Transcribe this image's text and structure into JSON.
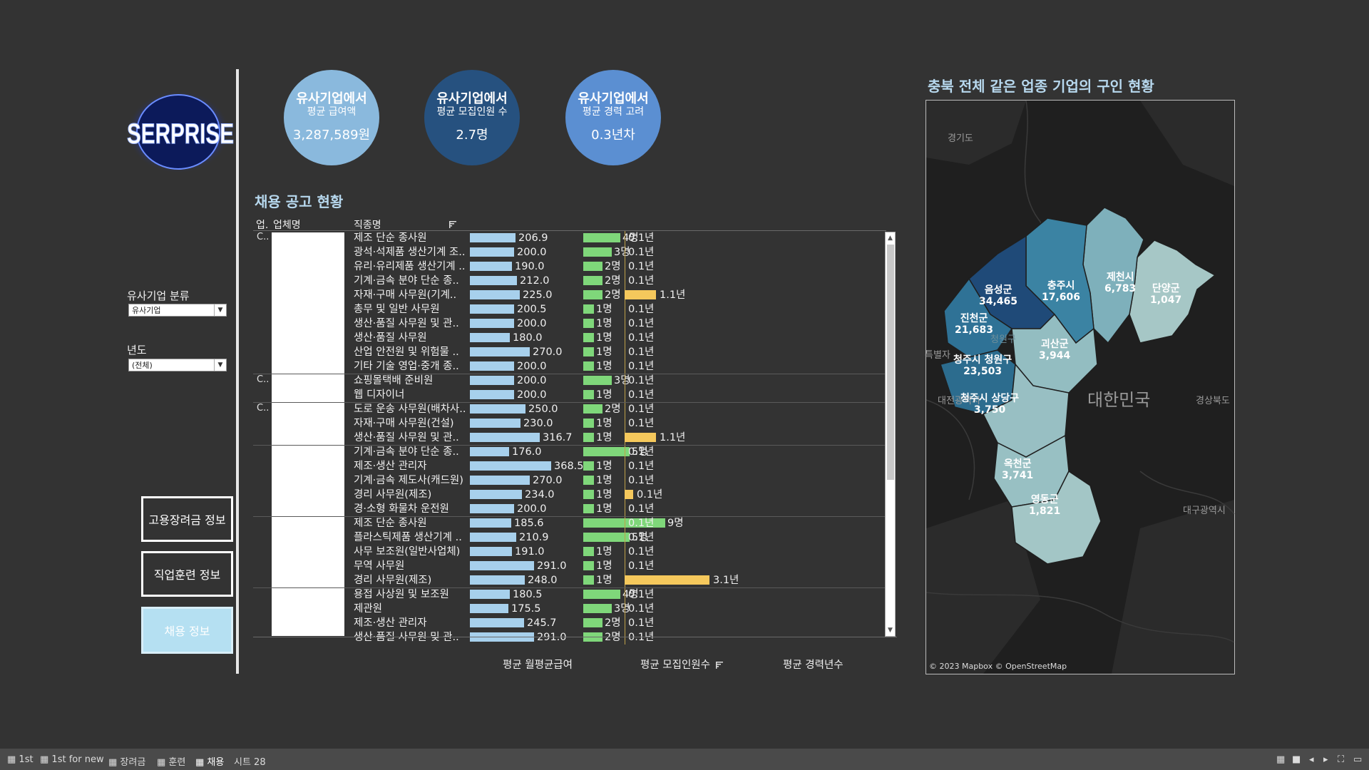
{
  "logo": {
    "text": "SERPRISE"
  },
  "filters": {
    "category_label": "유사기업 분류",
    "category_value": "유사기업",
    "year_label": "년도",
    "year_value": "(전체)"
  },
  "nav": {
    "subsidy": "고용장려금 정보",
    "training": "직업훈련 정보",
    "hiring": "채용 정보"
  },
  "kpis": [
    {
      "line1": "유사기업에서",
      "line2": "평균 급여액",
      "value": "3,287,589원",
      "color": "#8ab9dd"
    },
    {
      "line1": "유사기업에서",
      "line2": "평균 모집인원 수",
      "value": "2.7명",
      "color": "#26517f"
    },
    {
      "line1": "유사기업에서",
      "line2": "평균 경력 고려",
      "value": "0.3년차",
      "color": "#5b8fd2"
    }
  ],
  "table": {
    "title": "채용 공고 현황",
    "col_industry": "업.",
    "col_company": "업체명",
    "col_job": "직종명",
    "company_abbr": [
      "C..",
      "C..",
      "C.."
    ],
    "axis_salary": "평균 월평균급여",
    "axis_recruit": "평균 모집인원수",
    "axis_career": "평균 경력년수",
    "rows": [
      {
        "job": "제조 단순 종사원",
        "salary": 206.9,
        "salary_label": "206.9",
        "recruit": 4,
        "recruit_label": "4명",
        "career": 0.1,
        "career_label": "0.1년"
      },
      {
        "job": "광석·석제품 생산기계 조..",
        "salary": 200.0,
        "salary_label": "200.0",
        "recruit": 3,
        "recruit_label": "3명",
        "career": 0.1,
        "career_label": "0.1년"
      },
      {
        "job": "유리·유리제품 생산기계 ..",
        "salary": 190.0,
        "salary_label": "190.0",
        "recruit": 2,
        "recruit_label": "2명",
        "career": 0.1,
        "career_label": "0.1년"
      },
      {
        "job": "기계·금속 분야 단순 종..",
        "salary": 212.0,
        "salary_label": "212.0",
        "recruit": 2,
        "recruit_label": "2명",
        "career": 0.1,
        "career_label": "0.1년"
      },
      {
        "job": "자재·구매 사무원(기계..",
        "salary": 225.0,
        "salary_label": "225.0",
        "recruit": 2,
        "recruit_label": "2명",
        "career": 1.1,
        "career_label": "1.1년"
      },
      {
        "job": "총무 및 일반 사무원",
        "salary": 200.5,
        "salary_label": "200.5",
        "recruit": 1,
        "recruit_label": "1명",
        "career": 0.1,
        "career_label": "0.1년"
      },
      {
        "job": "생산·품질 사무원 및 관..",
        "salary": 200.0,
        "salary_label": "200.0",
        "recruit": 1,
        "recruit_label": "1명",
        "career": 0.1,
        "career_label": "0.1년"
      },
      {
        "job": "생산·품질 사무원",
        "salary": 180.0,
        "salary_label": "180.0",
        "recruit": 1,
        "recruit_label": "1명",
        "career": 0.1,
        "career_label": "0.1년"
      },
      {
        "job": "산업 안전원 및 위험물 ..",
        "salary": 270.0,
        "salary_label": "270.0",
        "recruit": 1,
        "recruit_label": "1명",
        "career": 0.1,
        "career_label": "0.1년"
      },
      {
        "job": "기타 기술 영업·중개 종..",
        "salary": 200.0,
        "salary_label": "200.0",
        "recruit": 1,
        "recruit_label": "1명",
        "career": 0.1,
        "career_label": "0.1년"
      },
      {
        "job": "쇼핑몰택배 준비원",
        "salary": 200.0,
        "salary_label": "200.0",
        "recruit": 3,
        "recruit_label": "3명",
        "career": 0.1,
        "career_label": "0.1년"
      },
      {
        "job": "웹 디자이너",
        "salary": 200.0,
        "salary_label": "200.0",
        "recruit": 1,
        "recruit_label": "1명",
        "career": 0.1,
        "career_label": "0.1년"
      },
      {
        "job": "도로 운송 사무원(배차사..",
        "salary": 250.0,
        "salary_label": "250.0",
        "recruit": 2,
        "recruit_label": "2명",
        "career": 0.1,
        "career_label": "0.1년"
      },
      {
        "job": "자재·구매 사무원(건설)",
        "salary": 230.0,
        "salary_label": "230.0",
        "recruit": 1,
        "recruit_label": "1명",
        "career": 0.1,
        "career_label": "0.1년"
      },
      {
        "job": "생산·품질 사무원 및 관..",
        "salary": 316.7,
        "salary_label": "316.7",
        "recruit": 1,
        "recruit_label": "1명",
        "career": 1.1,
        "career_label": "1.1년"
      },
      {
        "job": "기계·금속 분야 단순 종..",
        "salary": 176.0,
        "salary_label": "176.0",
        "recruit": 5,
        "recruit_label": "5명",
        "career": 0.1,
        "career_label": "0.1년"
      },
      {
        "job": "제조·생산 관리자",
        "salary": 368.5,
        "salary_label": "368.5",
        "recruit": 1,
        "recruit_label": "1명",
        "career": 0.1,
        "career_label": "0.1년"
      },
      {
        "job": "기계·금속 제도사(캐드원)",
        "salary": 270.0,
        "salary_label": "270.0",
        "recruit": 1,
        "recruit_label": "1명",
        "career": 0.1,
        "career_label": "0.1년"
      },
      {
        "job": "경리 사무원(제조)",
        "salary": 234.0,
        "salary_label": "234.0",
        "recruit": 1,
        "recruit_label": "1명",
        "career": 0.1,
        "career_label": "0.1년",
        "career_highlight": true
      },
      {
        "job": "경·소형 화물차 운전원",
        "salary": 200.0,
        "salary_label": "200.0",
        "recruit": 1,
        "recruit_label": "1명",
        "career": 0.1,
        "career_label": "0.1년"
      },
      {
        "job": "제조 단순 종사원",
        "salary": 185.6,
        "salary_label": "185.6",
        "recruit": 9,
        "recruit_label": "9명",
        "career": 0.1,
        "career_label": "0.1년"
      },
      {
        "job": "플라스틱제품 생산기계 ..",
        "salary": 210.9,
        "salary_label": "210.9",
        "recruit": 5,
        "recruit_label": "5명",
        "career": 0.1,
        "career_label": "0.1년"
      },
      {
        "job": "사무 보조원(일반사업체)",
        "salary": 191.0,
        "salary_label": "191.0",
        "recruit": 1,
        "recruit_label": "1명",
        "career": 0.1,
        "career_label": "0.1년"
      },
      {
        "job": "무역 사무원",
        "salary": 291.0,
        "salary_label": "291.0",
        "recruit": 1,
        "recruit_label": "1명",
        "career": 0.1,
        "career_label": "0.1년"
      },
      {
        "job": "경리 사무원(제조)",
        "salary": 248.0,
        "salary_label": "248.0",
        "recruit": 1,
        "recruit_label": "1명",
        "career": 3.1,
        "career_label": "3.1년"
      },
      {
        "job": "용접 사상원 및 보조원",
        "salary": 180.5,
        "salary_label": "180.5",
        "recruit": 4,
        "recruit_label": "4명",
        "career": 0.1,
        "career_label": "0.1년"
      },
      {
        "job": "제관원",
        "salary": 175.5,
        "salary_label": "175.5",
        "recruit": 3,
        "recruit_label": "3명",
        "career": 0.1,
        "career_label": "0.1년"
      },
      {
        "job": "제조·생산 관리자",
        "salary": 245.7,
        "salary_label": "245.7",
        "recruit": 2,
        "recruit_label": "2명",
        "career": 0.1,
        "career_label": "0.1년"
      },
      {
        "job": "생산·품질 사무원 및 관..",
        "salary": 291.0,
        "salary_label": "291.0",
        "recruit": 2,
        "recruit_label": "2명",
        "career": 0.1,
        "career_label": "0.1년"
      }
    ],
    "group_breaks_after": [
      9,
      11,
      14,
      19,
      24
    ]
  },
  "map": {
    "title": "충북 전체 같은 업종 기업의 구인 현황",
    "attribution": "© 2023 Mapbox © OpenStreetMap",
    "country_label": "대한민국",
    "places": [
      "경기도",
      "특별자",
      "대전광역시",
      "경상북도",
      "대구광역시",
      "청원구"
    ],
    "regions": [
      {
        "name": "음성군",
        "value": "34,465",
        "color": "#1f4a78"
      },
      {
        "name": "충주시",
        "value": "17,606",
        "color": "#3b83a3"
      },
      {
        "name": "제천시",
        "value": "6,783",
        "color": "#7eb0bb"
      },
      {
        "name": "단양군",
        "value": "1,047",
        "color": "#a6c7c6"
      },
      {
        "name": "진천군",
        "value": "21,683",
        "color": "#2f7296"
      },
      {
        "name": "괴산군",
        "value": "3,944",
        "color": "#93bdc1"
      },
      {
        "name": "청주시 청원구",
        "value": "23,503",
        "color": "#2c6c8e"
      },
      {
        "name": "청주시 상당구",
        "value": "3,750",
        "color": "#98bfc3"
      },
      {
        "name": "옥천군",
        "value": "3,741",
        "color": "#98c0c3"
      },
      {
        "name": "영동군",
        "value": "1,821",
        "color": "#a3c6c6"
      }
    ]
  },
  "tabs": [
    "1st",
    "1st for new",
    "장려금",
    "훈련",
    "채용",
    "시트 28"
  ]
}
